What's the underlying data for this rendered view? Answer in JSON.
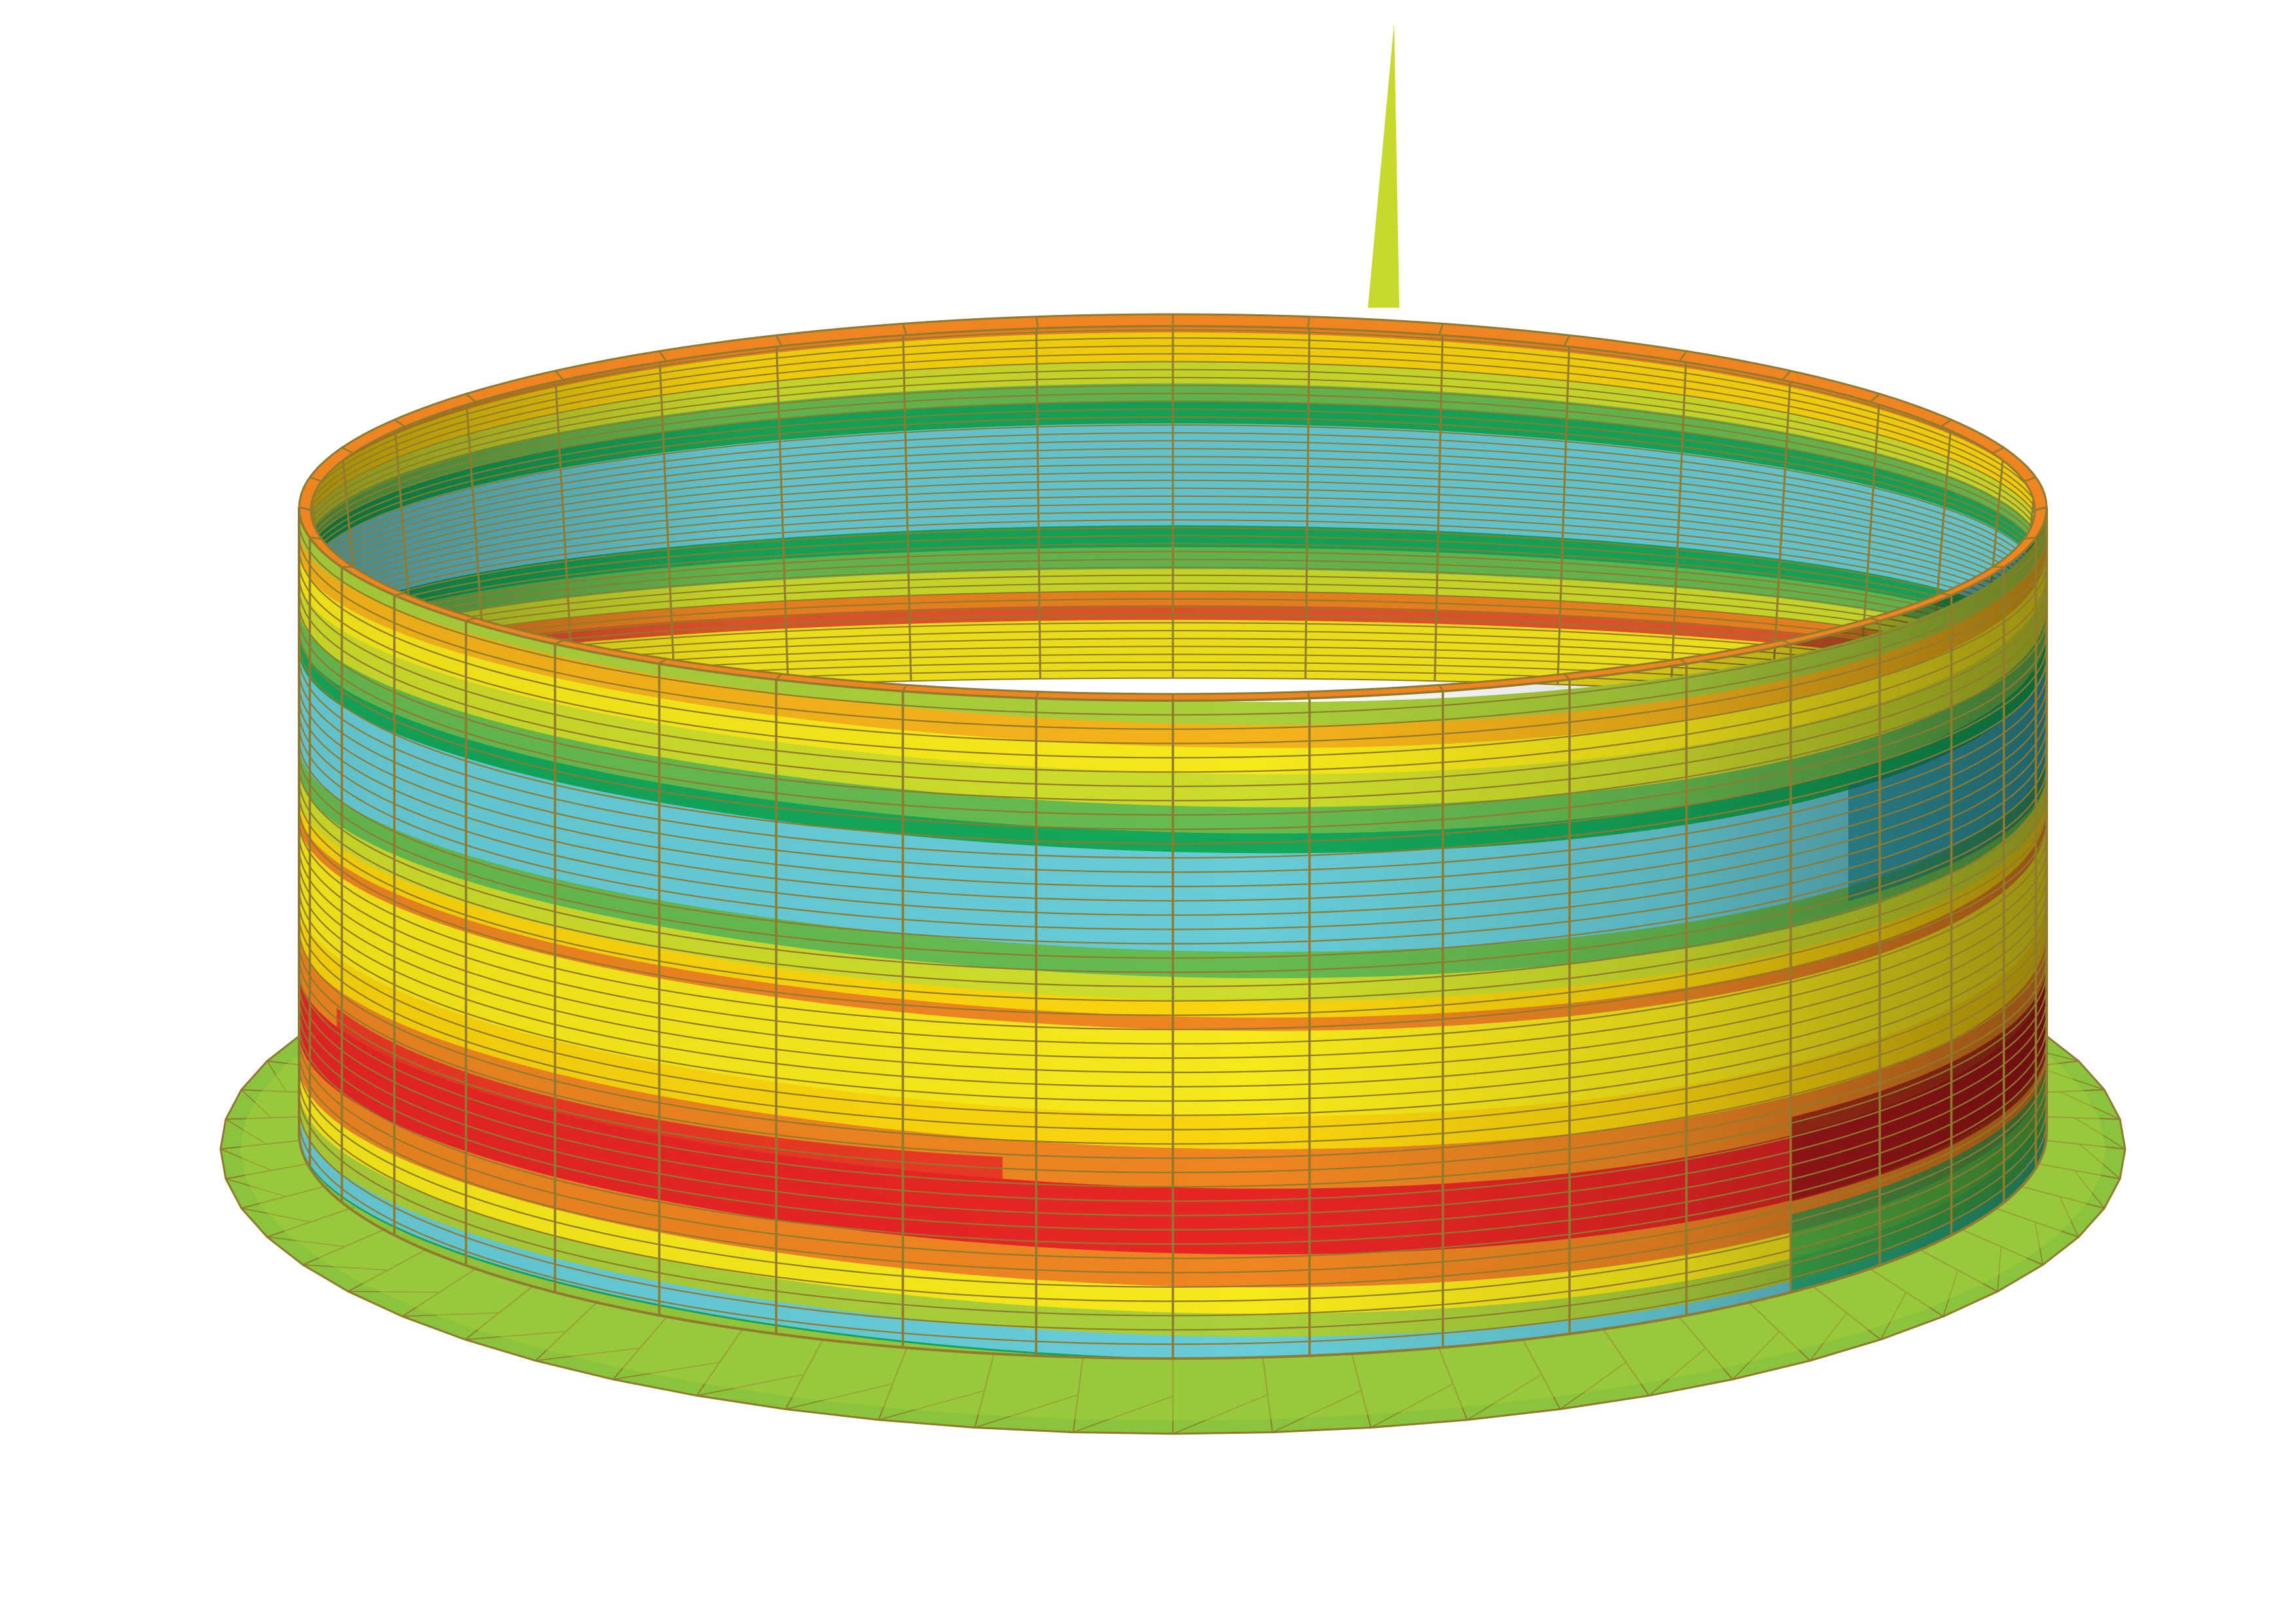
{
  "figure": {
    "kind": "fe-contour-plot",
    "subject": "cylindrical-tank-shell-with-annular-base-plate",
    "background_color": "#ffffff",
    "mesh_line_color": "#8f7a2e",
    "spike_color": "#c8d92e",
    "base_plate_color": "#8ac43c",
    "contour_palette": [
      "#0b7b85",
      "#17b8c2",
      "#66ccd8",
      "#14a75a",
      "#66bb50",
      "#a9cf3a",
      "#cddc2b",
      "#f7e81a",
      "#fad40d",
      "#f5b31a",
      "#ee8521",
      "#e8542a",
      "#e82525",
      "#9e1518"
    ],
    "bands_front": [
      {
        "t": 0.0,
        "color": "#a9cf3a"
      },
      {
        "t": 0.035,
        "color": "#f5b31a"
      },
      {
        "t": 0.07,
        "color": "#f7e81a"
      },
      {
        "t": 0.11,
        "color": "#cddc2b"
      },
      {
        "t": 0.16,
        "color": "#66bb50"
      },
      {
        "t": 0.2,
        "color": "#14a75a"
      },
      {
        "t": 0.23,
        "color": "#66ccd8"
      },
      {
        "t": 0.38,
        "color": "#66bb50"
      },
      {
        "t": 0.42,
        "color": "#cddc2b"
      },
      {
        "t": 0.455,
        "color": "#fad40d"
      },
      {
        "t": 0.48,
        "color": "#ee8521"
      },
      {
        "t": 0.5,
        "color": "#f7e81a"
      },
      {
        "t": 0.63,
        "color": "#fad40d"
      },
      {
        "t": 0.68,
        "color": "#ee8521"
      },
      {
        "t": 0.74,
        "color": "#e82525"
      },
      {
        "t": 0.84,
        "color": "#ee8521"
      },
      {
        "t": 0.89,
        "color": "#f7e81a"
      },
      {
        "t": 0.93,
        "color": "#a9cf3a"
      },
      {
        "t": 0.965,
        "color": "#66ccd8"
      },
      {
        "t": 1.0,
        "color": "#14a75a"
      }
    ],
    "bands_back": [
      {
        "t": 0.0,
        "color": "#ee8521"
      },
      {
        "t": 0.05,
        "color": "#fad40d"
      },
      {
        "t": 0.13,
        "color": "#cddc2b"
      },
      {
        "t": 0.19,
        "color": "#66bb50"
      },
      {
        "t": 0.24,
        "color": "#14a75a"
      },
      {
        "t": 0.3,
        "color": "#66ccd8"
      },
      {
        "t": 0.58,
        "color": "#14a75a"
      },
      {
        "t": 0.64,
        "color": "#66bb50"
      },
      {
        "t": 0.7,
        "color": "#cddc2b"
      },
      {
        "t": 0.76,
        "color": "#ee8521"
      },
      {
        "t": 0.8,
        "color": "#e8542a"
      },
      {
        "t": 0.84,
        "color": "#f7e81a"
      },
      {
        "t": 1.0,
        "color": "#fad40d"
      }
    ],
    "shell_segments": 40,
    "shell_rings": 46
  }
}
